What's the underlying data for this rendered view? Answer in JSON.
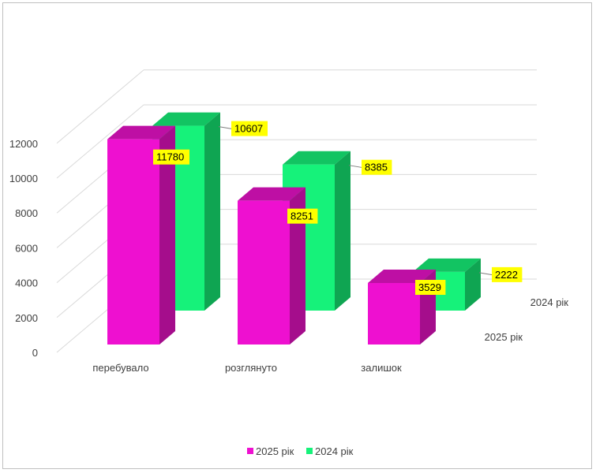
{
  "chart_data": {
    "type": "bar",
    "categories": [
      "перебувало",
      "розглянуто",
      "залишок"
    ],
    "series": [
      {
        "name": "2025 рік",
        "values": [
          11780,
          8251,
          3529
        ]
      },
      {
        "name": "2024 рік",
        "values": [
          10607,
          8385,
          2222
        ]
      }
    ],
    "ylim": [
      0,
      12000
    ],
    "yticks": [
      "0",
      "2000",
      "4000",
      "6000",
      "8000",
      "10000",
      "12000"
    ],
    "depth_labels": [
      "2025 рік",
      "2024 рік"
    ],
    "legend_position": "bottom",
    "grid": true,
    "colors": {
      "series_2025": "#ee10d0",
      "series_2025_side": "#a50d8c",
      "series_2025_top": "#be0fa4",
      "series_2024": "#16f27a",
      "series_2024_side": "#0fa552",
      "series_2024_top": "#12c462",
      "data_label_bg": "#ffff00",
      "grid": "#d9d9d9"
    }
  }
}
